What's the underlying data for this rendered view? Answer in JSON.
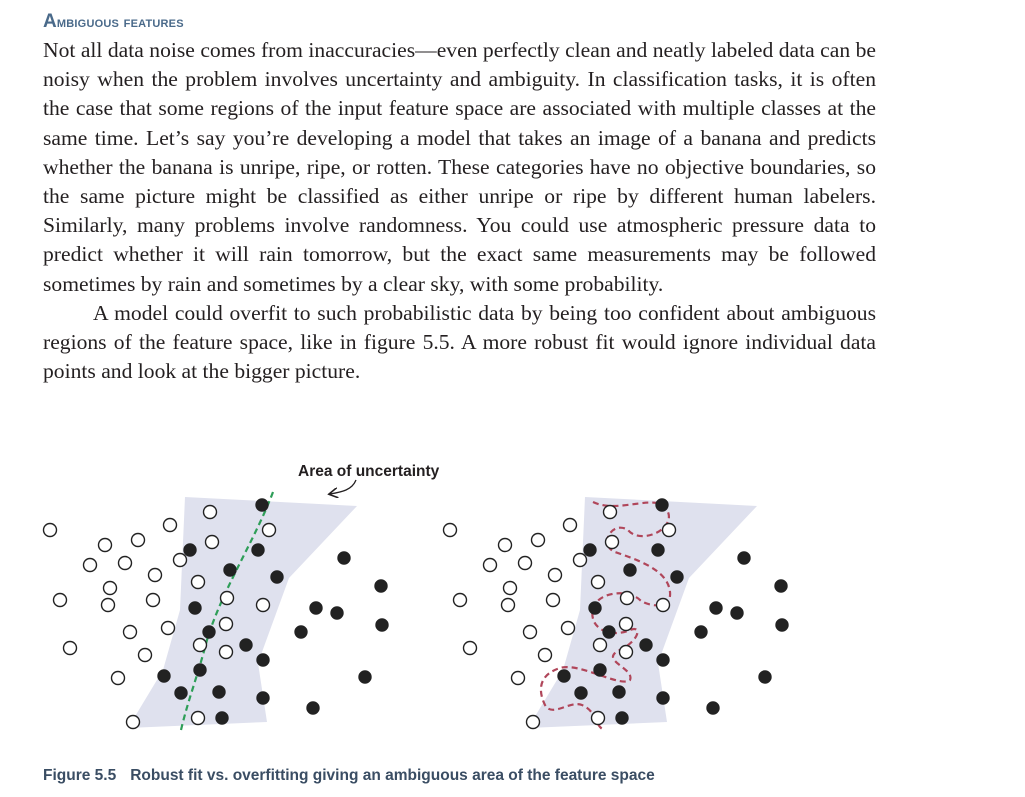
{
  "section": {
    "heading": "Ambiguous features"
  },
  "paragraphs": [
    "Not all data noise comes from inaccuracies—even perfectly clean and neatly labeled data can be noisy when the problem involves uncertainty and ambiguity. In classification tasks, it is often the case that some regions of the input feature space are associated with multiple classes at the same time. Let’s say you’re developing a model that takes an image of a banana and predicts whether the banana is unripe, ripe, or rotten. These categories have no objective boundaries, so the same picture might be classified as either unripe or ripe by different human labelers. Similarly, many problems involve randomness. You could use atmospheric pressure data to predict whether it will rain tomorrow, but the exact same measurements may be followed sometimes by rain and sometimes by a clear sky, with some probability.",
    "A model could overfit to such probabilistic data by being too confident about ambiguous regions of the feature space, like in figure 5.5. A more robust fit would ignore individual data points and look at the bigger picture."
  ],
  "figure": {
    "annotation": "Area of uncertainty",
    "caption_number": "Figure 5.5",
    "caption_text": "Robust fit vs. overfitting giving an ambiguous area of the feature space",
    "colors": {
      "uncertainty_area": "#dfe1ee",
      "robust_boundary": "#2e9e58",
      "overfit_boundary": "#b0465a",
      "point": "#222222"
    }
  }
}
